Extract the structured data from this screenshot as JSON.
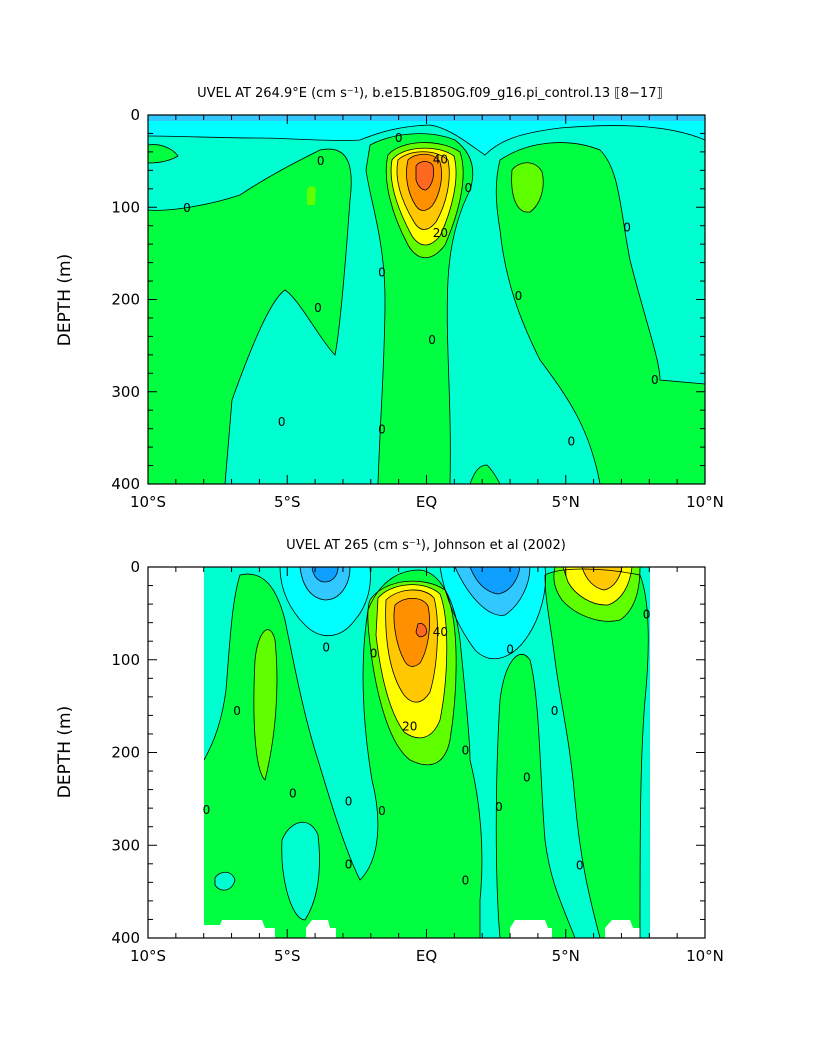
{
  "chart_data": [
    {
      "type": "contour",
      "title": "UVEL AT 264.9°E (cm s⁻¹), b.e15.B1850G.f09_g16.pi_control.13 ⟦8−17⟧",
      "ylabel": "DEPTH (m)",
      "xlabel": "",
      "xlim": [
        -10,
        10
      ],
      "ylim": [
        400,
        0
      ],
      "x_ticks": [
        {
          "v": -10,
          "label": "10°S"
        },
        {
          "v": -5,
          "label": "5°S"
        },
        {
          "v": 0,
          "label": "EQ"
        },
        {
          "v": 5,
          "label": "5°N"
        },
        {
          "v": 10,
          "label": "10°N"
        }
      ],
      "y_ticks": [
        {
          "v": 0,
          "label": "0"
        },
        {
          "v": 100,
          "label": "100"
        },
        {
          "v": 200,
          "label": "200"
        },
        {
          "v": 300,
          "label": "300"
        },
        {
          "v": 400,
          "label": "400"
        }
      ],
      "contour_labels": [
        {
          "x": -8.6,
          "y": 101,
          "text": "0"
        },
        {
          "x": -3.8,
          "y": 50,
          "text": "0"
        },
        {
          "x": -3.9,
          "y": 209,
          "text": "0"
        },
        {
          "x": -5.2,
          "y": 333,
          "text": "0"
        },
        {
          "x": -1.6,
          "y": 171,
          "text": "0"
        },
        {
          "x": -1.6,
          "y": 341,
          "text": "0"
        },
        {
          "x": -1.0,
          "y": 25,
          "text": "0"
        },
        {
          "x": 0.2,
          "y": 244,
          "text": "0"
        },
        {
          "x": 1.5,
          "y": 79,
          "text": "0"
        },
        {
          "x": 3.3,
          "y": 196,
          "text": "0"
        },
        {
          "x": 5.2,
          "y": 354,
          "text": "0"
        },
        {
          "x": 7.2,
          "y": 122,
          "text": "0"
        },
        {
          "x": 8.2,
          "y": 287,
          "text": "0"
        },
        {
          "x": 0.5,
          "y": 48,
          "text": "40"
        },
        {
          "x": 0.5,
          "y": 128,
          "text": "20"
        }
      ],
      "peak": {
        "x": -0.1,
        "y": 65,
        "max_cm_s": 55
      },
      "colors": {
        "neg3": "#0fa0ff",
        "neg2": "#30c8ff",
        "neg1": "#00ffff",
        "neg0": "#00ffd0",
        "pos0": "#00ff40",
        "pos1": "#60ff00",
        "pos2": "#ffff00",
        "pos3": "#ffc800",
        "pos4": "#ff9000",
        "pos5": "#ff6820"
      }
    },
    {
      "type": "contour",
      "title": "UVEL AT 265 (cm s⁻¹), Johnson et al (2002)",
      "ylabel": "DEPTH (m)",
      "xlabel": "",
      "xlim": [
        -10,
        10
      ],
      "ylim": [
        400,
        0
      ],
      "data_extent_x": [
        -8,
        8
      ],
      "x_ticks": [
        {
          "v": -10,
          "label": "10°S"
        },
        {
          "v": -5,
          "label": "5°S"
        },
        {
          "v": 0,
          "label": "EQ"
        },
        {
          "v": 5,
          "label": "5°N"
        },
        {
          "v": 10,
          "label": "10°N"
        }
      ],
      "y_ticks": [
        {
          "v": 0,
          "label": "0"
        },
        {
          "v": 100,
          "label": "100"
        },
        {
          "v": 200,
          "label": "200"
        },
        {
          "v": 300,
          "label": "300"
        },
        {
          "v": 400,
          "label": "400"
        }
      ],
      "contour_labels": [
        {
          "x": -7.9,
          "y": 262,
          "text": "0"
        },
        {
          "x": -6.8,
          "y": 155,
          "text": "0"
        },
        {
          "x": -4.8,
          "y": 244,
          "text": "0"
        },
        {
          "x": -3.6,
          "y": 87,
          "text": "0"
        },
        {
          "x": -2.8,
          "y": 253,
          "text": "0"
        },
        {
          "x": -2.8,
          "y": 321,
          "text": "0"
        },
        {
          "x": -1.9,
          "y": 93,
          "text": "0"
        },
        {
          "x": -1.6,
          "y": 263,
          "text": "0"
        },
        {
          "x": 1.4,
          "y": 198,
          "text": "0"
        },
        {
          "x": 1.4,
          "y": 338,
          "text": "0"
        },
        {
          "x": 2.6,
          "y": 259,
          "text": "0"
        },
        {
          "x": 3.0,
          "y": 89,
          "text": "0"
        },
        {
          "x": 3.6,
          "y": 227,
          "text": "0"
        },
        {
          "x": 4.6,
          "y": 155,
          "text": "0"
        },
        {
          "x": 5.5,
          "y": 322,
          "text": "0"
        },
        {
          "x": 7.9,
          "y": 51,
          "text": "0"
        },
        {
          "x": 0.5,
          "y": 70,
          "text": "40"
        },
        {
          "x": -0.6,
          "y": 172,
          "text": "20"
        }
      ],
      "peak": {
        "x": -0.1,
        "y": 65,
        "max_cm_s": 50
      },
      "colors": {
        "neg3": "#0fa0ff",
        "neg2": "#30c8ff",
        "neg1": "#00ffff",
        "neg0": "#00ffd0",
        "pos0": "#00ff40",
        "pos1": "#60ff00",
        "pos2": "#ffff00",
        "pos3": "#ffc800",
        "pos4": "#ff9000",
        "pos5": "#ff6820"
      }
    }
  ]
}
